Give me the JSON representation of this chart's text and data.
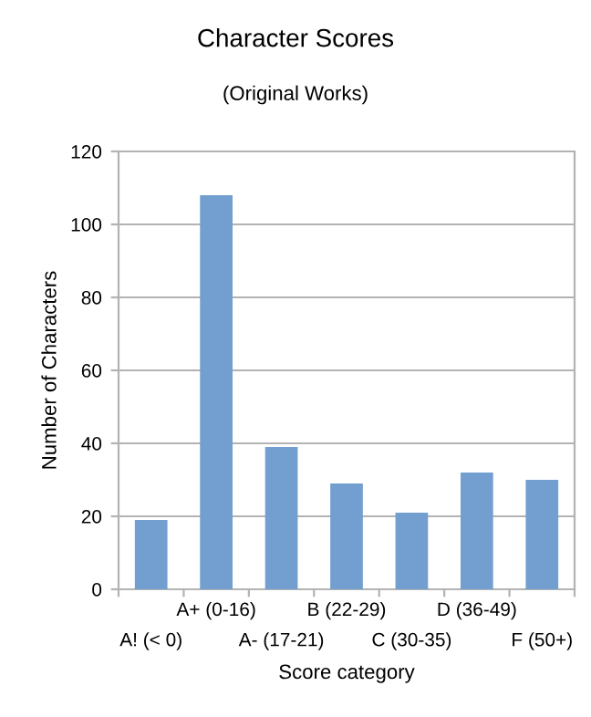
{
  "chart_data": {
    "type": "bar",
    "title": "Character Scores",
    "subtitle": "(Original Works)",
    "xlabel": "Score category",
    "ylabel": "Number of Characters",
    "categories": [
      "A! (< 0)",
      "A+ (0-16)",
      "A- (17-21)",
      "B (22-29)",
      "C (30-35)",
      "D (36-49)",
      "F (50+)"
    ],
    "values": [
      19,
      108,
      39,
      29,
      21,
      32,
      30
    ],
    "color": "#729fcf",
    "ylim": [
      0,
      120
    ],
    "yticks": [
      0,
      20,
      40,
      60,
      80,
      100,
      120
    ],
    "grid": "y",
    "legend": false
  }
}
